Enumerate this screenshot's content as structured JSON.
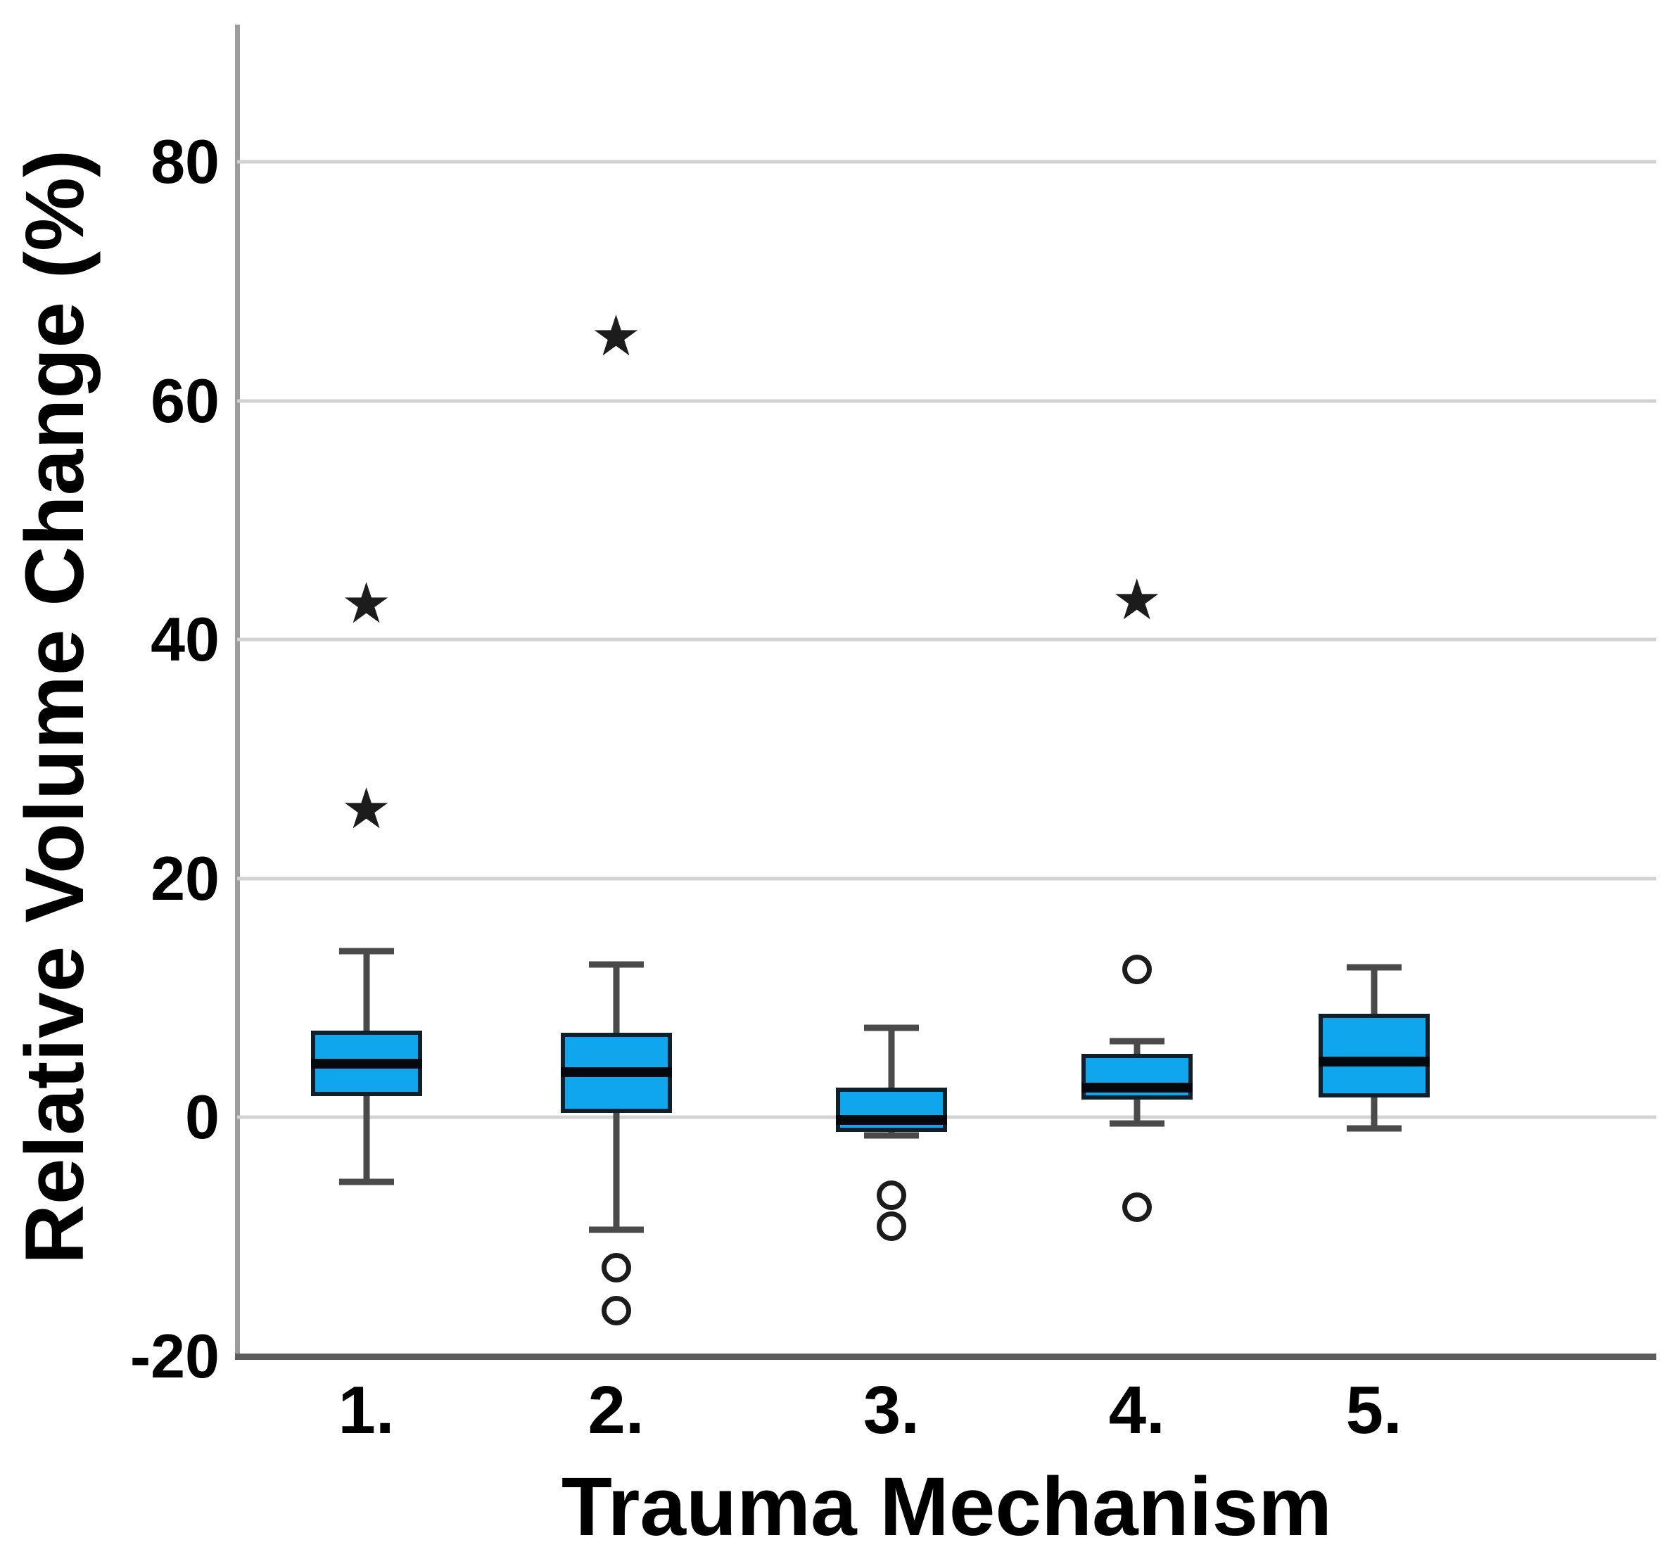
{
  "chart_data": {
    "type": "box",
    "xlabel": "Trauma Mechanism",
    "ylabel": "Relative Volume Change (%)",
    "categories": [
      "1.",
      "2.",
      "3.",
      "4.",
      "5."
    ],
    "y_ticks": [
      80,
      60,
      40,
      20,
      0,
      -20
    ],
    "grid_values": [
      80,
      60,
      40,
      20,
      0
    ],
    "ylim": [
      -20,
      91.5
    ],
    "grid": true,
    "legend": "none",
    "groups": [
      {
        "label": "1.",
        "center_pct": 9.1,
        "whisker_low": -5.4,
        "q1": 1.8,
        "median": 4.5,
        "q3": 7.3,
        "whisker_high": 13.9,
        "outliers": [
          {
            "type": "star",
            "value": 43.0
          },
          {
            "type": "star",
            "value": 25.8
          }
        ]
      },
      {
        "label": "2.",
        "center_pct": 26.7,
        "whisker_low": -9.4,
        "q1": 0.4,
        "median": 3.8,
        "q3": 7.1,
        "whisker_high": 12.8,
        "outliers": [
          {
            "type": "star",
            "value": 65.4
          },
          {
            "type": "circle",
            "value": -12.6
          },
          {
            "type": "circle",
            "value": -16.2
          }
        ]
      },
      {
        "label": "3.",
        "center_pct": 46.1,
        "whisker_low": -1.5,
        "q1": -1.2,
        "median": -0.2,
        "q3": 2.5,
        "whisker_high": 7.5,
        "outliers": [
          {
            "type": "circle",
            "value": -6.5
          },
          {
            "type": "circle",
            "value": -9.1
          }
        ]
      },
      {
        "label": "4.",
        "center_pct": 63.4,
        "whisker_low": -0.5,
        "q1": 1.5,
        "median": 2.5,
        "q3": 5.3,
        "whisker_high": 6.4,
        "outliers": [
          {
            "type": "star",
            "value": 43.3
          },
          {
            "type": "circle",
            "value": 12.4
          },
          {
            "type": "circle",
            "value": -7.5
          }
        ]
      },
      {
        "label": "5.",
        "center_pct": 80.1,
        "whisker_low": -0.9,
        "q1": 1.7,
        "median": 4.7,
        "q3": 8.7,
        "whisker_high": 12.6,
        "outliers": []
      }
    ],
    "colors": {
      "box_fill": "#0FA6EE",
      "box_border": "#10202b",
      "median": "#05090e",
      "whisker": "#4a4a4a",
      "gridline": "#d2d2d2",
      "axis_left": "#9c9c9c",
      "axis_bottom": "#5c5c5c",
      "outlier": "#1c1c1c",
      "text": "#000000",
      "background": "#ffffff"
    },
    "glyphs": {
      "star": "★"
    }
  }
}
